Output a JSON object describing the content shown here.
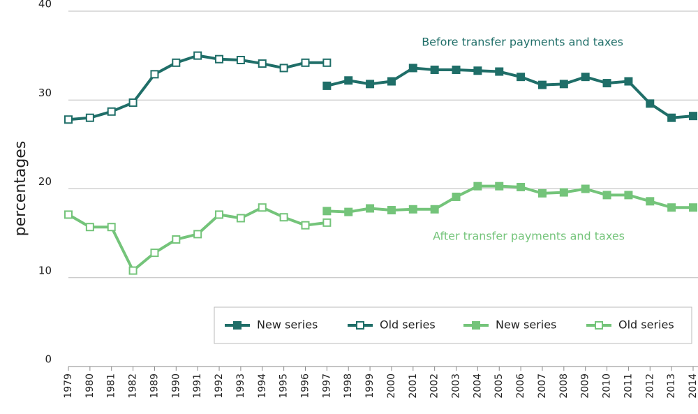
{
  "chart_data": {
    "type": "line",
    "ylabel": "percentages",
    "annotations": [
      "Before transfer payments and taxes",
      "After transfer payments and taxes"
    ],
    "categories": [
      "1979",
      "1980",
      "1981",
      "1982",
      "1989",
      "1990",
      "1991",
      "1992",
      "1993",
      "1994",
      "1995",
      "1996",
      "1997",
      "1998",
      "1999",
      "2000",
      "2001",
      "2002",
      "2003",
      "2004",
      "2005",
      "2006",
      "2007",
      "2008",
      "2009",
      "2010",
      "2011",
      "2012",
      "2013",
      "2014"
    ],
    "series": [
      {
        "name": "New series",
        "color": "#1f6e68",
        "marker": "filled",
        "values": [
          null,
          null,
          null,
          null,
          null,
          null,
          null,
          null,
          null,
          null,
          null,
          null,
          31.6,
          32.2,
          31.8,
          32.1,
          33.6,
          33.4,
          33.4,
          33.3,
          33.2,
          32.6,
          31.7,
          31.8,
          32.6,
          31.9,
          32.1,
          29.6,
          28.0,
          28.2
        ]
      },
      {
        "name": "Old series",
        "color": "#1f6e68",
        "marker": "open",
        "values": [
          27.8,
          28.0,
          28.7,
          29.7,
          32.9,
          34.2,
          35.0,
          34.6,
          34.5,
          34.1,
          33.6,
          34.2,
          34.2,
          null,
          null,
          null,
          null,
          null,
          null,
          null,
          null,
          null,
          null,
          null,
          null,
          null,
          null,
          null,
          null,
          null
        ]
      },
      {
        "name": "New series",
        "color": "#74c47a",
        "marker": "filled",
        "values": [
          null,
          null,
          null,
          null,
          null,
          null,
          null,
          null,
          null,
          null,
          null,
          null,
          17.5,
          17.4,
          17.8,
          17.6,
          17.7,
          17.7,
          19.1,
          20.3,
          20.3,
          20.2,
          19.5,
          19.6,
          20.0,
          19.3,
          19.3,
          18.6,
          17.9,
          17.9
        ]
      },
      {
        "name": "Old series",
        "color": "#74c47a",
        "marker": "open",
        "values": [
          17.1,
          15.7,
          15.7,
          10.8,
          12.8,
          14.3,
          14.9,
          17.1,
          16.7,
          17.9,
          16.8,
          15.9,
          16.2,
          null,
          null,
          null,
          null,
          null,
          null,
          null,
          null,
          null,
          null,
          null,
          null,
          null,
          null,
          null,
          null,
          null
        ]
      }
    ],
    "ylim": [
      0,
      40
    ],
    "yticks": [
      0,
      10,
      20,
      30,
      40
    ],
    "grid": true,
    "legend": "bottom"
  }
}
